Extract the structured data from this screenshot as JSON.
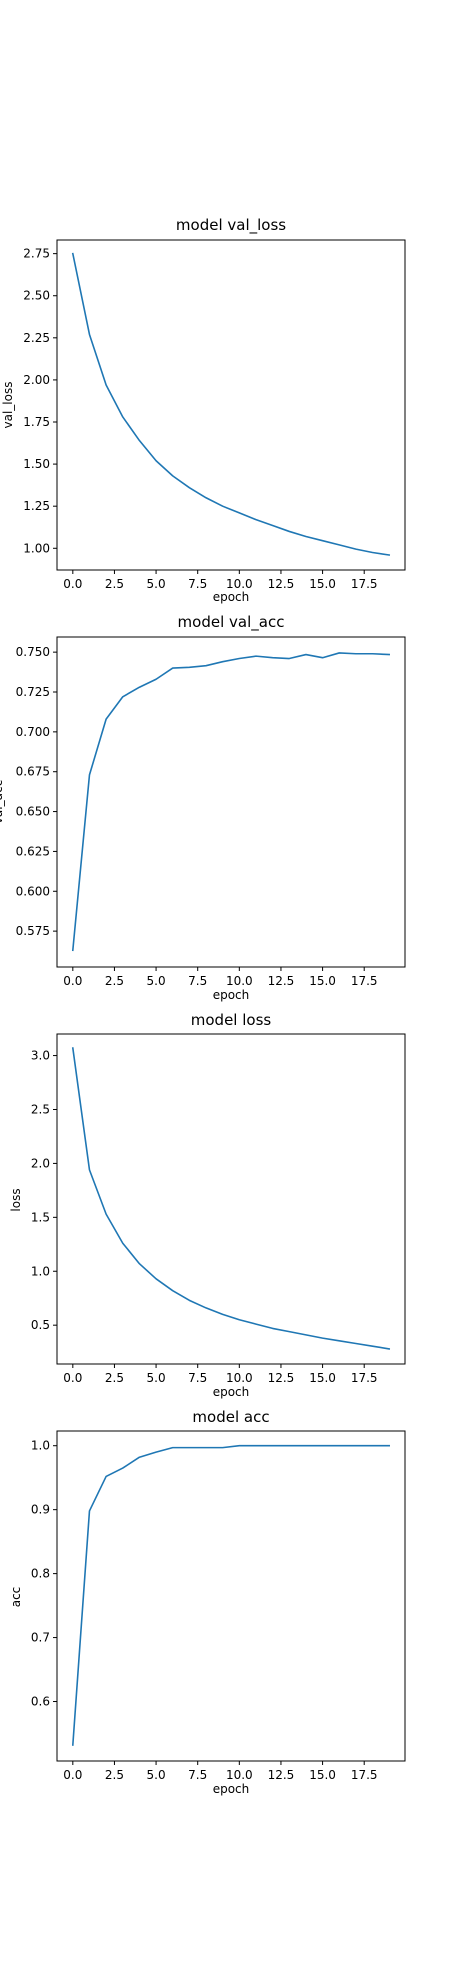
{
  "chart_data": [
    {
      "type": "line",
      "title": "model val_loss",
      "xlabel": "epoch",
      "ylabel": "val_loss",
      "xlim": [
        -0.95,
        19.95
      ],
      "ylim": [
        0.871,
        2.831
      ],
      "xticks": [
        0,
        2.5,
        5,
        7.5,
        10,
        12.5,
        15,
        17.5
      ],
      "xtick_labels": [
        "0.0",
        "2.5",
        "5.0",
        "7.5",
        "10.0",
        "12.5",
        "15.0",
        "17.5"
      ],
      "yticks": [
        1.0,
        1.25,
        1.5,
        1.75,
        2.0,
        2.25,
        2.5,
        2.75
      ],
      "ytick_labels": [
        "1.00",
        "1.25",
        "1.50",
        "1.75",
        "2.00",
        "2.25",
        "2.50",
        "2.75"
      ],
      "grid": false,
      "series": [
        {
          "color": "#1f77b4",
          "x": [
            0,
            1,
            2,
            3,
            4,
            5,
            6,
            7,
            8,
            9,
            10,
            11,
            12,
            13,
            14,
            15,
            16,
            17,
            18,
            19
          ],
          "values": [
            2.75,
            2.27,
            1.97,
            1.78,
            1.64,
            1.52,
            1.43,
            1.36,
            1.3,
            1.25,
            1.21,
            1.17,
            1.135,
            1.1,
            1.07,
            1.045,
            1.02,
            0.995,
            0.975,
            0.96
          ]
        }
      ]
    },
    {
      "type": "line",
      "title": "model val_acc",
      "xlabel": "epoch",
      "ylabel": "val_acc",
      "xlim": [
        -0.95,
        19.95
      ],
      "ylim": [
        0.5525,
        0.7595
      ],
      "xticks": [
        0,
        2.5,
        5,
        7.5,
        10,
        12.5,
        15,
        17.5
      ],
      "xtick_labels": [
        "0.0",
        "2.5",
        "5.0",
        "7.5",
        "10.0",
        "12.5",
        "15.0",
        "17.5"
      ],
      "yticks": [
        0.575,
        0.6,
        0.625,
        0.65,
        0.675,
        0.7,
        0.725,
        0.75
      ],
      "ytick_labels": [
        "0.575",
        "0.600",
        "0.625",
        "0.650",
        "0.675",
        "0.700",
        "0.725",
        "0.750"
      ],
      "grid": false,
      "series": [
        {
          "color": "#1f77b4",
          "x": [
            0,
            1,
            2,
            3,
            4,
            5,
            6,
            7,
            8,
            9,
            10,
            11,
            12,
            13,
            14,
            15,
            16,
            17,
            18,
            19
          ],
          "values": [
            0.563,
            0.673,
            0.708,
            0.722,
            0.728,
            0.733,
            0.74,
            0.7405,
            0.7415,
            0.744,
            0.746,
            0.7475,
            0.7465,
            0.746,
            0.7485,
            0.7465,
            0.7495,
            0.749,
            0.749,
            0.7485
          ]
        }
      ]
    },
    {
      "type": "line",
      "title": "model loss",
      "xlabel": "epoch",
      "ylabel": "loss",
      "xlim": [
        -0.95,
        19.95
      ],
      "ylim": [
        0.14,
        3.2
      ],
      "xticks": [
        0,
        2.5,
        5,
        7.5,
        10,
        12.5,
        15,
        17.5
      ],
      "xtick_labels": [
        "0.0",
        "2.5",
        "5.0",
        "7.5",
        "10.0",
        "12.5",
        "15.0",
        "17.5"
      ],
      "yticks": [
        0.5,
        1.0,
        1.5,
        2.0,
        2.5,
        3.0
      ],
      "ytick_labels": [
        "0.5",
        "1.0",
        "1.5",
        "2.0",
        "2.5",
        "3.0"
      ],
      "grid": false,
      "series": [
        {
          "color": "#1f77b4",
          "x": [
            0,
            1,
            2,
            3,
            4,
            5,
            6,
            7,
            8,
            9,
            10,
            11,
            12,
            13,
            14,
            15,
            16,
            17,
            18,
            19
          ],
          "values": [
            3.07,
            1.94,
            1.53,
            1.26,
            1.07,
            0.93,
            0.82,
            0.73,
            0.66,
            0.6,
            0.55,
            0.51,
            0.47,
            0.44,
            0.41,
            0.38,
            0.355,
            0.33,
            0.305,
            0.28
          ]
        }
      ]
    },
    {
      "type": "line",
      "title": "model acc",
      "xlabel": "epoch",
      "ylabel": "acc",
      "xlim": [
        -0.95,
        19.95
      ],
      "ylim": [
        0.507,
        1.023
      ],
      "xticks": [
        0,
        2.5,
        5,
        7.5,
        10,
        12.5,
        15,
        17.5
      ],
      "xtick_labels": [
        "0.0",
        "2.5",
        "5.0",
        "7.5",
        "10.0",
        "12.5",
        "15.0",
        "17.5"
      ],
      "yticks": [
        0.6,
        0.7,
        0.8,
        0.9,
        1.0
      ],
      "ytick_labels": [
        "0.6",
        "0.7",
        "0.8",
        "0.9",
        "1.0"
      ],
      "grid": false,
      "series": [
        {
          "color": "#1f77b4",
          "x": [
            0,
            1,
            2,
            3,
            4,
            5,
            6,
            7,
            8,
            9,
            10,
            11,
            12,
            13,
            14,
            15,
            16,
            17,
            18,
            19
          ],
          "values": [
            0.532,
            0.898,
            0.952,
            0.965,
            0.982,
            0.99,
            0.997,
            0.997,
            0.997,
            0.997,
            1.0,
            1.0,
            1.0,
            1.0,
            1.0,
            1.0,
            1.0,
            1.0,
            1.0,
            1.0
          ]
        }
      ]
    }
  ]
}
